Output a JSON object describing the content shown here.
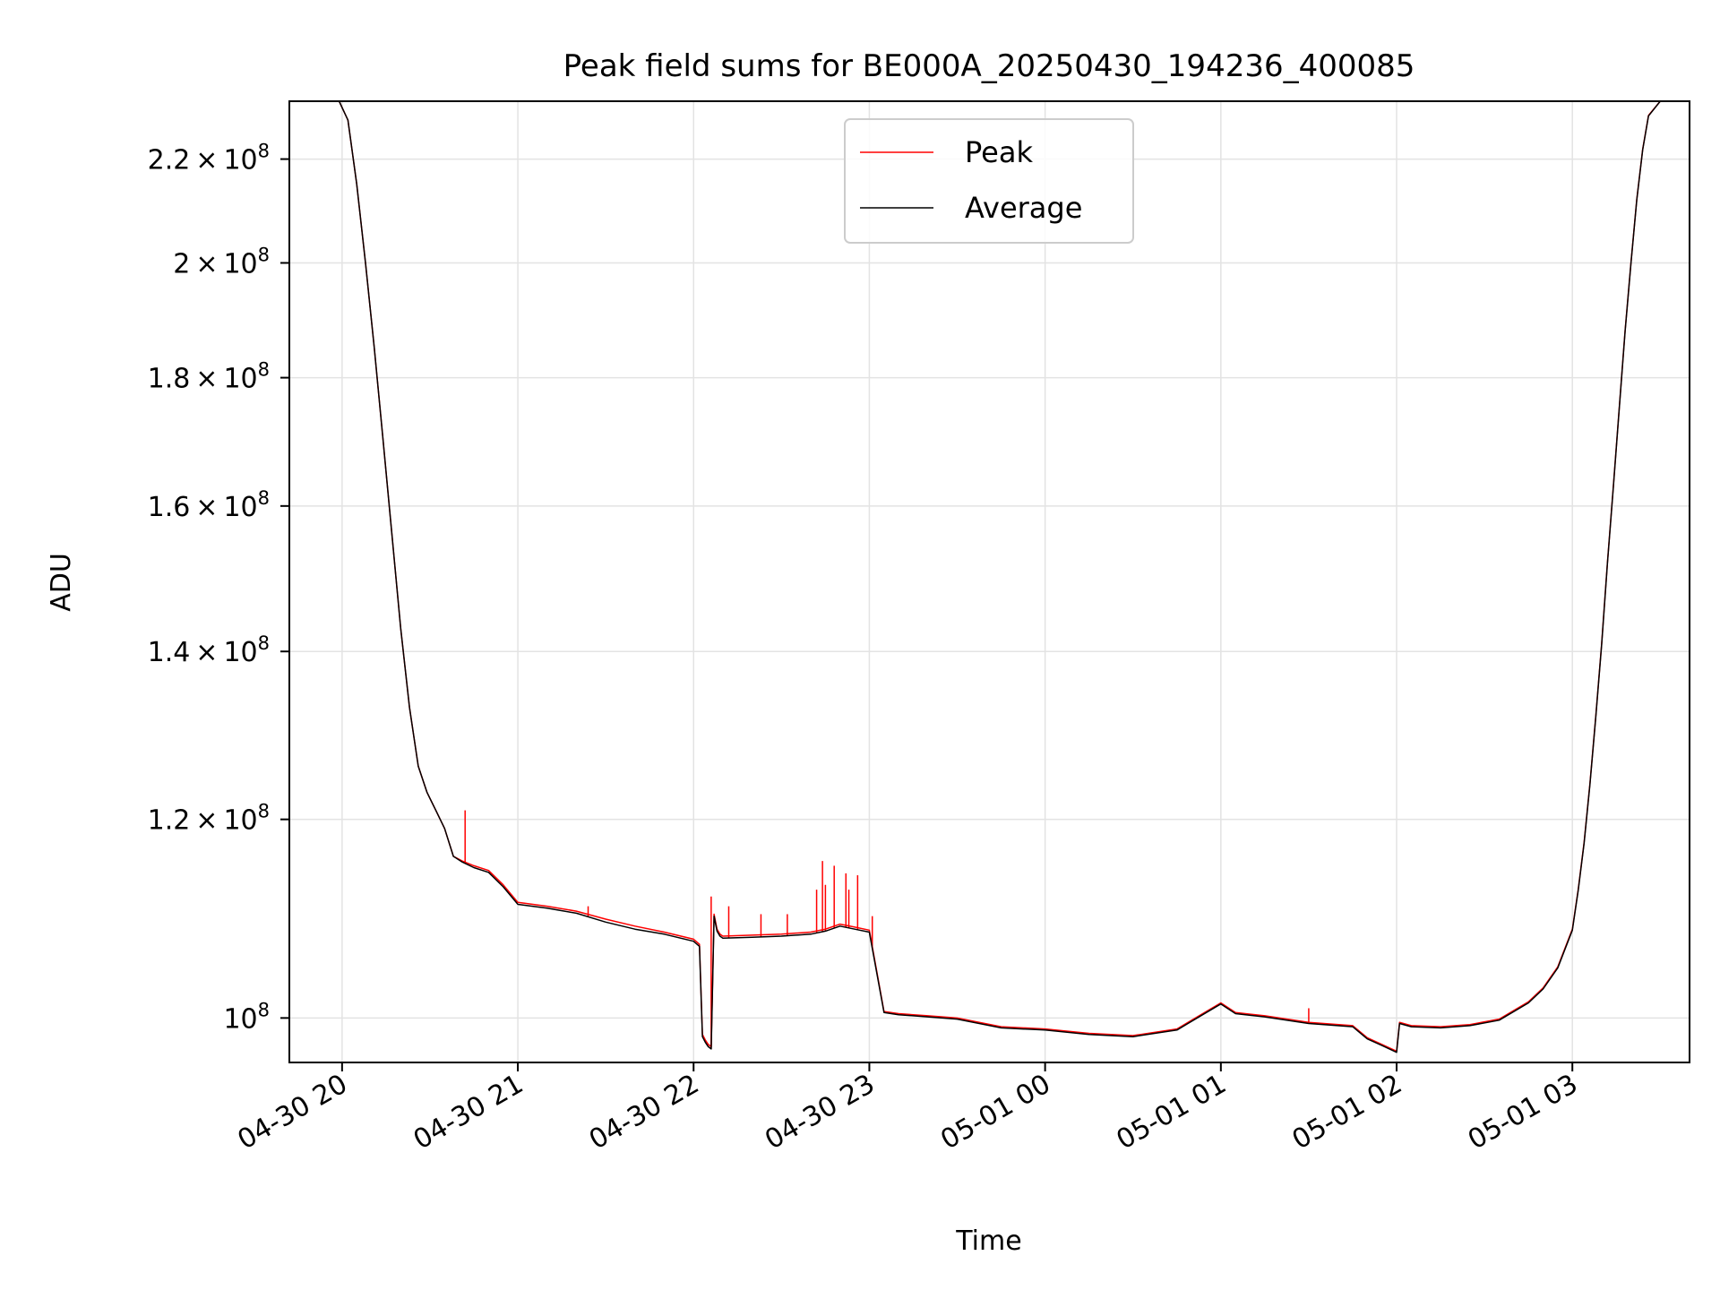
{
  "chart_data": {
    "type": "line",
    "title": "Peak field sums for BE000A_20250430_194236_400085",
    "xlabel": "Time",
    "ylabel": "ADU",
    "y_scale": "log",
    "ylim": [
      96000000,
      232000000
    ],
    "xlim": [
      "2025-04-30 19:42",
      "2025-05-01 03:40"
    ],
    "grid": true,
    "legend": {
      "placement": "upper center"
    },
    "x_ticks": [
      "04-30 20",
      "04-30 21",
      "04-30 22",
      "04-30 23",
      "05-01 00",
      "05-01 01",
      "05-01 02",
      "05-01 03"
    ],
    "x_tick_times": [
      "2025-04-30 20:00",
      "2025-04-30 21:00",
      "2025-04-30 22:00",
      "2025-04-30 23:00",
      "2025-05-01 00:00",
      "2025-05-01 01:00",
      "2025-05-01 02:00",
      "2025-05-01 03:00"
    ],
    "y_ticks": [
      {
        "value": 100000000,
        "mantissa": "",
        "exponent": "8"
      },
      {
        "value": 120000000,
        "mantissa": "1.2",
        "exponent": "8"
      },
      {
        "value": 140000000,
        "mantissa": "1.4",
        "exponent": "8"
      },
      {
        "value": 160000000,
        "mantissa": "1.6",
        "exponent": "8"
      },
      {
        "value": 180000000,
        "mantissa": "1.8",
        "exponent": "8"
      },
      {
        "value": 200000000,
        "mantissa": "2",
        "exponent": "8"
      },
      {
        "value": 220000000,
        "mantissa": "2.2",
        "exponent": "8"
      }
    ],
    "series": [
      {
        "name": "Peak",
        "color": "#ff0000"
      },
      {
        "name": "Average",
        "color": "#000000"
      }
    ],
    "x": [
      "2025-04-30 19:59",
      "2025-04-30 20:02",
      "2025-04-30 20:05",
      "2025-04-30 20:08",
      "2025-04-30 20:11",
      "2025-04-30 20:14",
      "2025-04-30 20:17",
      "2025-04-30 20:20",
      "2025-04-30 20:23",
      "2025-04-30 20:26",
      "2025-04-30 20:29",
      "2025-04-30 20:32",
      "2025-04-30 20:35",
      "2025-04-30 20:38",
      "2025-04-30 20:41",
      "2025-04-30 20:45",
      "2025-04-30 20:50",
      "2025-04-30 20:55",
      "2025-04-30 21:00",
      "2025-04-30 21:10",
      "2025-04-30 21:20",
      "2025-04-30 21:30",
      "2025-04-30 21:40",
      "2025-04-30 21:50",
      "2025-04-30 22:00",
      "2025-04-30 22:02",
      "2025-04-30 22:03",
      "2025-04-30 22:04",
      "2025-04-30 22:05",
      "2025-04-30 22:06",
      "2025-04-30 22:07",
      "2025-04-30 22:08",
      "2025-04-30 22:09",
      "2025-04-30 22:10",
      "2025-04-30 22:20",
      "2025-04-30 22:30",
      "2025-04-30 22:40",
      "2025-04-30 22:45",
      "2025-04-30 22:50",
      "2025-04-30 22:55",
      "2025-04-30 23:00",
      "2025-04-30 23:05",
      "2025-04-30 23:10",
      "2025-04-30 23:20",
      "2025-04-30 23:30",
      "2025-04-30 23:45",
      "2025-05-01 00:00",
      "2025-05-01 00:15",
      "2025-05-01 00:30",
      "2025-05-01 00:45",
      "2025-05-01 00:55",
      "2025-05-01 01:00",
      "2025-05-01 01:05",
      "2025-05-01 01:15",
      "2025-05-01 01:30",
      "2025-05-01 01:45",
      "2025-05-01 01:50",
      "2025-05-01 01:55",
      "2025-05-01 02:00",
      "2025-05-01 02:01",
      "2025-05-01 02:05",
      "2025-05-01 02:15",
      "2025-05-01 02:25",
      "2025-05-01 02:35",
      "2025-05-01 02:45",
      "2025-05-01 02:50",
      "2025-05-01 02:55",
      "2025-05-01 03:00",
      "2025-05-01 03:02",
      "2025-05-01 03:04",
      "2025-05-01 03:06",
      "2025-05-01 03:08",
      "2025-05-01 03:10",
      "2025-05-01 03:12",
      "2025-05-01 03:14",
      "2025-05-01 03:16",
      "2025-05-01 03:18",
      "2025-05-01 03:20",
      "2025-05-01 03:22",
      "2025-05-01 03:24",
      "2025-05-01 03:26",
      "2025-05-01 03:30",
      "2025-05-01 03:35",
      "2025-05-01 03:40"
    ],
    "peak": [
      232000000,
      228000000,
      215000000,
      200000000,
      185000000,
      170000000,
      156000000,
      143000000,
      133000000,
      126000000,
      123000000,
      121000000,
      119000000,
      116000000,
      115500000,
      115000000,
      114500000,
      113000000,
      111200000,
      110800000,
      110300000,
      109500000,
      108800000,
      108200000,
      107500000,
      107000000,
      98500000,
      98000000,
      97600000,
      97400000,
      110000000,
      108500000,
      108000000,
      107800000,
      107900000,
      108000000,
      108200000,
      108500000,
      109000000,
      108700000,
      108400000,
      100600000,
      100400000,
      100200000,
      100000000,
      99200000,
      99000000,
      98600000,
      98400000,
      99000000,
      100600000,
      101400000,
      100500000,
      100200000,
      99600000,
      99300000,
      98200000,
      97600000,
      97000000,
      99600000,
      99300000,
      99200000,
      99400000,
      99900000,
      101500000,
      102800000,
      104800000,
      108500000,
      112500000,
      117500000,
      124000000,
      132000000,
      141000000,
      152000000,
      163000000,
      175000000,
      188000000,
      200000000,
      212000000,
      222000000,
      229000000,
      232000000,
      232000000,
      232000000
    ],
    "average": [
      232000000,
      228000000,
      215000000,
      200000000,
      185000000,
      170000000,
      156000000,
      143000000,
      133000000,
      126000000,
      123000000,
      121000000,
      119000000,
      116000000,
      115400000,
      114800000,
      114300000,
      112800000,
      111000000,
      110600000,
      110100000,
      109200000,
      108500000,
      108000000,
      107300000,
      106800000,
      98300000,
      97800000,
      97400000,
      97200000,
      109800000,
      108300000,
      107800000,
      107600000,
      107700000,
      107800000,
      108000000,
      108300000,
      108800000,
      108500000,
      108200000,
      100500000,
      100300000,
      100100000,
      99900000,
      99100000,
      98900000,
      98500000,
      98300000,
      98900000,
      100500000,
      101300000,
      100400000,
      100100000,
      99500000,
      99200000,
      98100000,
      97500000,
      96900000,
      99500000,
      99200000,
      99100000,
      99300000,
      99800000,
      101400000,
      102700000,
      104700000,
      108400000,
      112400000,
      117400000,
      123900000,
      131900000,
      140900000,
      151900000,
      162900000,
      174900000,
      187900000,
      199900000,
      211900000,
      221900000,
      228900000,
      232000000,
      232000000,
      232000000
    ],
    "peak_spikes": [
      {
        "x": "2025-04-30 20:42",
        "value": 121000000
      },
      {
        "x": "2025-04-30 21:24",
        "value": 110800000
      },
      {
        "x": "2025-04-30 22:06",
        "value": 111800000
      },
      {
        "x": "2025-04-30 22:12",
        "value": 110800000
      },
      {
        "x": "2025-04-30 22:23",
        "value": 110000000
      },
      {
        "x": "2025-04-30 22:32",
        "value": 110000000
      },
      {
        "x": "2025-04-30 22:42",
        "value": 112500000
      },
      {
        "x": "2025-04-30 22:44",
        "value": 115500000
      },
      {
        "x": "2025-04-30 22:45",
        "value": 113000000
      },
      {
        "x": "2025-04-30 22:48",
        "value": 115000000
      },
      {
        "x": "2025-04-30 22:52",
        "value": 114200000
      },
      {
        "x": "2025-04-30 22:53",
        "value": 112500000
      },
      {
        "x": "2025-04-30 22:56",
        "value": 114000000
      },
      {
        "x": "2025-04-30 23:01",
        "value": 109800000
      },
      {
        "x": "2025-05-01 01:30",
        "value": 100900000
      }
    ]
  }
}
